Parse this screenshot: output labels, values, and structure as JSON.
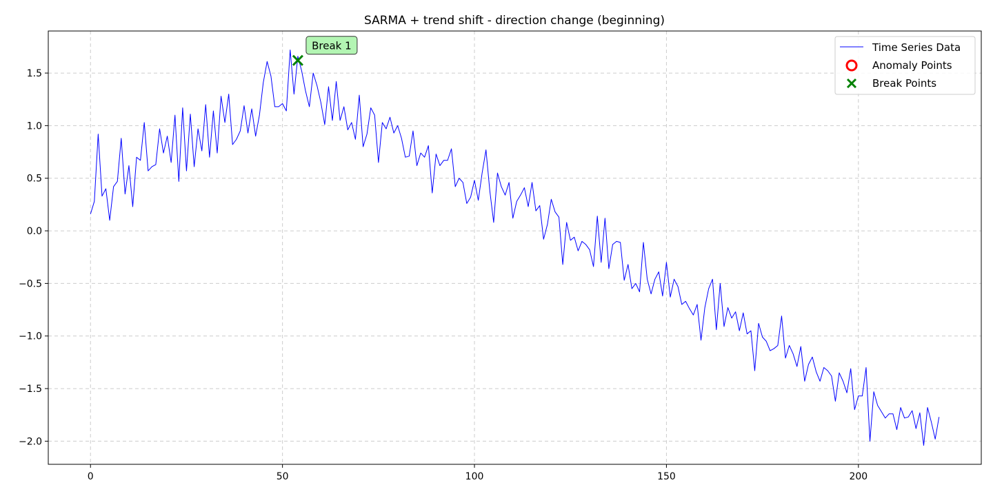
{
  "chart_data": {
    "type": "line",
    "title": "SARMA + trend shift - direction change (beginning)",
    "xlabel": "",
    "ylabel": "",
    "xlim": [
      -11,
      232
    ],
    "ylim": [
      -2.22,
      1.9
    ],
    "xticks": [
      0,
      50,
      100,
      150,
      200
    ],
    "xtick_labels": [
      "0",
      "50",
      "100",
      "150",
      "200"
    ],
    "yticks": [
      -2.0,
      -1.5,
      -1.0,
      -0.5,
      0.0,
      0.5,
      1.0,
      1.5
    ],
    "ytick_labels": [
      "−2.0",
      "−1.5",
      "−1.0",
      "−0.5",
      "0.0",
      "0.5",
      "1.0",
      "1.5"
    ],
    "grid": true,
    "legend": {
      "position": "top-right",
      "entries": [
        "Time Series Data",
        "Anomaly Points",
        "Break Points"
      ]
    },
    "series": [
      {
        "name": "Time Series Data",
        "color": "#0000ff",
        "x_start": 0,
        "values": [
          0.16,
          0.28,
          0.92,
          0.33,
          0.4,
          0.1,
          0.42,
          0.47,
          0.88,
          0.35,
          0.62,
          0.23,
          0.7,
          0.67,
          1.03,
          0.57,
          0.61,
          0.63,
          0.97,
          0.74,
          0.9,
          0.65,
          1.1,
          0.47,
          1.17,
          0.57,
          1.11,
          0.61,
          0.97,
          0.76,
          1.2,
          0.7,
          1.14,
          0.74,
          1.28,
          1.03,
          1.3,
          0.82,
          0.87,
          0.95,
          1.19,
          0.93,
          1.16,
          0.9,
          1.1,
          1.41,
          1.61,
          1.47,
          1.18,
          1.18,
          1.21,
          1.14,
          1.72,
          1.3,
          1.66,
          1.52,
          1.33,
          1.18,
          1.5,
          1.38,
          1.22,
          1.01,
          1.37,
          1.05,
          1.42,
          1.05,
          1.18,
          0.96,
          1.03,
          0.87,
          1.29,
          0.8,
          0.92,
          1.17,
          1.1,
          0.65,
          1.03,
          0.97,
          1.08,
          0.93,
          1.0,
          0.88,
          0.7,
          0.71,
          0.95,
          0.62,
          0.74,
          0.7,
          0.81,
          0.36,
          0.73,
          0.62,
          0.67,
          0.67,
          0.78,
          0.42,
          0.5,
          0.46,
          0.26,
          0.32,
          0.48,
          0.29,
          0.55,
          0.77,
          0.38,
          0.08,
          0.55,
          0.42,
          0.34,
          0.46,
          0.12,
          0.28,
          0.34,
          0.41,
          0.23,
          0.46,
          0.19,
          0.24,
          -0.08,
          0.06,
          0.3,
          0.18,
          0.13,
          -0.32,
          0.08,
          -0.09,
          -0.06,
          -0.19,
          -0.1,
          -0.13,
          -0.18,
          -0.34,
          0.14,
          -0.3,
          0.12,
          -0.36,
          -0.13,
          -0.1,
          -0.11,
          -0.47,
          -0.32,
          -0.55,
          -0.5,
          -0.58,
          -0.11,
          -0.46,
          -0.6,
          -0.46,
          -0.39,
          -0.62,
          -0.3,
          -0.63,
          -0.46,
          -0.53,
          -0.7,
          -0.67,
          -0.74,
          -0.8,
          -0.7,
          -1.04,
          -0.73,
          -0.55,
          -0.46,
          -0.94,
          -0.5,
          -0.91,
          -0.73,
          -0.83,
          -0.77,
          -0.95,
          -0.78,
          -0.98,
          -0.95,
          -1.33,
          -0.88,
          -1.01,
          -1.05,
          -1.14,
          -1.12,
          -1.09,
          -0.81,
          -1.21,
          -1.09,
          -1.17,
          -1.29,
          -1.1,
          -1.43,
          -1.27,
          -1.2,
          -1.34,
          -1.43,
          -1.3,
          -1.33,
          -1.38,
          -1.62,
          -1.35,
          -1.43,
          -1.54,
          -1.31,
          -1.7,
          -1.57,
          -1.57,
          -1.3,
          -2.0,
          -1.53,
          -1.66,
          -1.72,
          -1.78,
          -1.74,
          -1.74,
          -1.89,
          -1.68,
          -1.78,
          -1.77,
          -1.71,
          -1.88,
          -1.73,
          -2.04,
          -1.68,
          -1.82,
          -1.98,
          -1.77
        ]
      }
    ],
    "anomaly_points": [],
    "break_points": [
      {
        "x": 54,
        "y": 1.62,
        "label": "Break 1",
        "color": "#008000"
      }
    ],
    "colors": {
      "line": "#0000ff",
      "anomaly": "#ff0000",
      "break": "#008000",
      "annotation_fill": "#b3f5b3",
      "grid": "#cccccc"
    }
  }
}
